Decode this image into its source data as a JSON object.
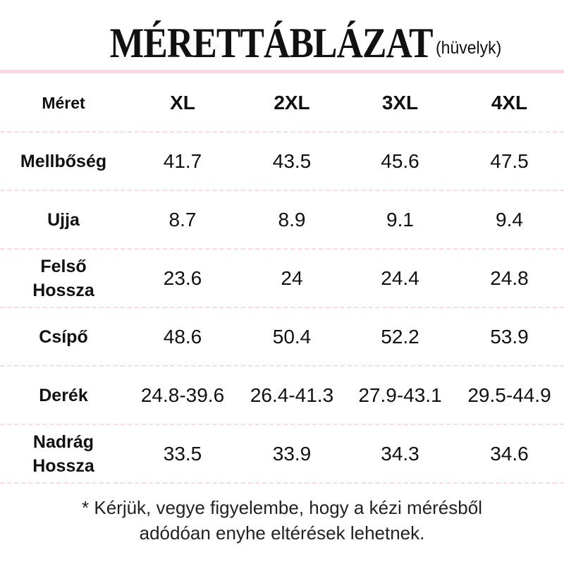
{
  "title": {
    "main": "MÉRETTÁBLÁZAT",
    "unit": "(hüvelyk)"
  },
  "colors": {
    "divider": "#fdd6de",
    "row_separator": "#fbdbe2"
  },
  "table": {
    "header": [
      "Méret",
      "XL",
      "2XL",
      "3XL",
      "4XL"
    ],
    "rows": [
      [
        "Mellbőség",
        "41.7",
        "43.5",
        "45.6",
        "47.5"
      ],
      [
        "Ujja",
        "8.7",
        "8.9",
        "9.1",
        "9.4"
      ],
      [
        "Felső\nHossza",
        "23.6",
        "24",
        "24.4",
        "24.8"
      ],
      [
        "Csípő",
        "48.6",
        "50.4",
        "52.2",
        "53.9"
      ],
      [
        "Derék",
        "24.8-39.6",
        "26.4-41.3",
        "27.9-43.1",
        "29.5-44.9"
      ],
      [
        "Nadrág\nHossza",
        "33.5",
        "33.9",
        "34.3",
        "34.6"
      ]
    ]
  },
  "note": {
    "line1": "* Kérjük, vegye figyelembe, hogy a kézi mérésből",
    "line2": "adódóan enyhe eltérések lehetnek."
  }
}
